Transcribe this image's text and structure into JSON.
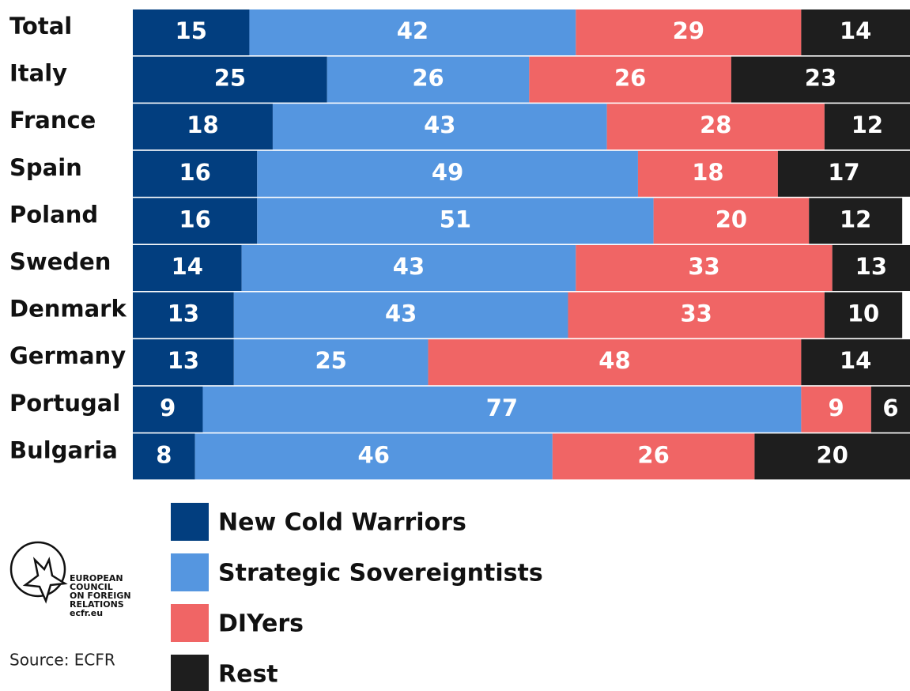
{
  "chart_data": {
    "type": "stacked_barh",
    "categories": [
      "Total",
      "Italy",
      "France",
      "Spain",
      "Poland",
      "Sweden",
      "Denmark",
      "Germany",
      "Portugal",
      "Bulgaria"
    ],
    "series": [
      {
        "name": "New Cold Warriors",
        "color": "#023e7f",
        "values": [
          15,
          25,
          18,
          16,
          16,
          14,
          13,
          13,
          9,
          8
        ]
      },
      {
        "name": "Strategic Sovereigntists",
        "color": "#5596e0",
        "values": [
          42,
          26,
          43,
          49,
          51,
          43,
          43,
          25,
          77,
          46
        ]
      },
      {
        "name": "DIYers",
        "color": "#f06565",
        "values": [
          29,
          26,
          28,
          18,
          20,
          33,
          33,
          48,
          9,
          26
        ]
      },
      {
        "name": "Rest",
        "color": "#1e1e1e",
        "values": [
          14,
          23,
          12,
          17,
          12,
          13,
          10,
          14,
          6,
          20
        ]
      }
    ],
    "xlim": [
      0,
      100
    ]
  },
  "logo": {
    "lines": [
      "EUROPEAN",
      "COUNCIL",
      "ON FOREIGN",
      "RELATIONS",
      "ecfr.eu"
    ]
  },
  "source": "Source: ECFR"
}
